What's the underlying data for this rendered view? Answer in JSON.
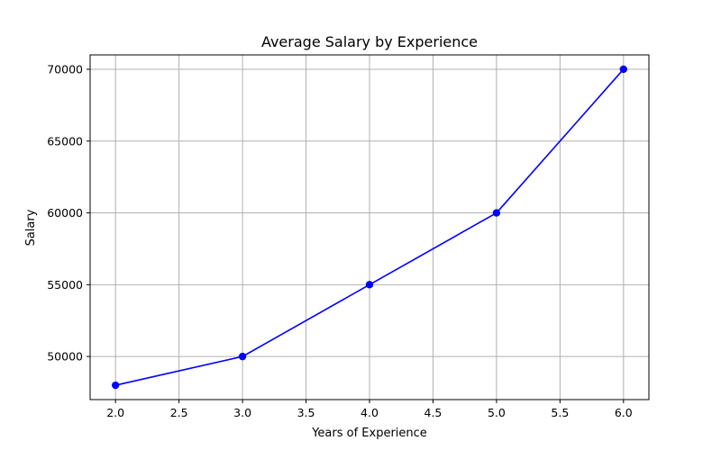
{
  "chart_data": {
    "type": "line",
    "title": "Average Salary by Experience",
    "xlabel": "Years of Experience",
    "ylabel": "Salary",
    "x": [
      2.0,
      3.0,
      4.0,
      5.0,
      6.0
    ],
    "series": [
      {
        "values": [
          48000,
          50000,
          55000,
          60000,
          70000
        ],
        "color": "#0000ff",
        "marker": "circle"
      }
    ],
    "xlim": [
      1.8,
      6.2
    ],
    "ylim": [
      47000,
      71000
    ],
    "xticks": [
      "2.0",
      "2.5",
      "3.0",
      "3.5",
      "4.0",
      "4.5",
      "5.0",
      "5.5",
      "6.0"
    ],
    "yticks": [
      "50000",
      "55000",
      "60000",
      "65000",
      "70000"
    ],
    "grid": true,
    "legend": false
  }
}
